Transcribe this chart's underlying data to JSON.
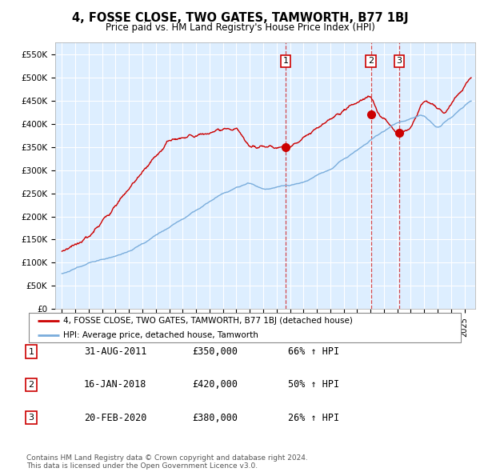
{
  "title": "4, FOSSE CLOSE, TWO GATES, TAMWORTH, B77 1BJ",
  "subtitle": "Price paid vs. HM Land Registry's House Price Index (HPI)",
  "plot_bg_color": "#ddeeff",
  "ylim": [
    0,
    575000
  ],
  "yticks": [
    0,
    50000,
    100000,
    150000,
    200000,
    250000,
    300000,
    350000,
    400000,
    450000,
    500000,
    550000
  ],
  "ytick_labels": [
    "£0",
    "£50K",
    "£100K",
    "£150K",
    "£200K",
    "£250K",
    "£300K",
    "£350K",
    "£400K",
    "£450K",
    "£500K",
    "£550K"
  ],
  "legend_label_red": "4, FOSSE CLOSE, TWO GATES, TAMWORTH, B77 1BJ (detached house)",
  "legend_label_blue": "HPI: Average price, detached house, Tamworth",
  "transactions": [
    {
      "num": 1,
      "date": "31-AUG-2011",
      "price": "£350,000",
      "pct": "66% ↑ HPI",
      "x_year": 2011.67,
      "marker_price": 350000
    },
    {
      "num": 2,
      "date": "16-JAN-2018",
      "price": "£420,000",
      "pct": "50% ↑ HPI",
      "x_year": 2018.04,
      "marker_price": 420000
    },
    {
      "num": 3,
      "date": "20-FEB-2020",
      "price": "£380,000",
      "pct": "26% ↑ HPI",
      "x_year": 2020.13,
      "marker_price": 380000
    }
  ],
  "footer": "Contains HM Land Registry data © Crown copyright and database right 2024.\nThis data is licensed under the Open Government Licence v3.0.",
  "red_color": "#cc0000",
  "blue_color": "#7aaddc",
  "xlim_left": 1994.5,
  "xlim_right": 2025.8
}
